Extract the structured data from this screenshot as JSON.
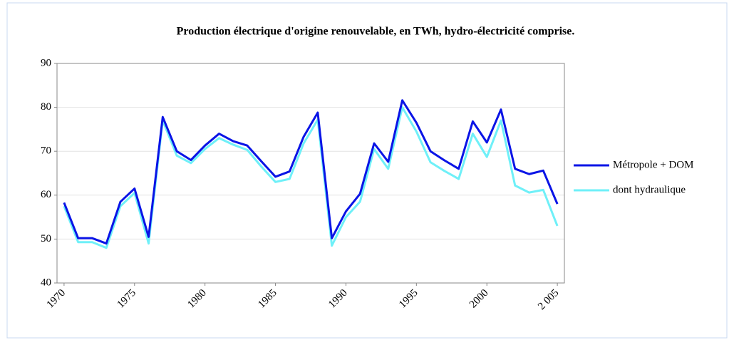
{
  "chart_data": {
    "type": "line",
    "title": "Production électrique d'origine renouvelable, en TWh, hydro-électricité comprise.",
    "x": [
      1970,
      1971,
      1972,
      1973,
      1974,
      1975,
      1976,
      1977,
      1978,
      1979,
      1980,
      1981,
      1982,
      1983,
      1984,
      1985,
      1986,
      1987,
      1988,
      1989,
      1990,
      1991,
      1992,
      1993,
      1994,
      1995,
      1996,
      1997,
      1998,
      1999,
      2000,
      2001,
      2002,
      2003,
      2004,
      2005
    ],
    "series": [
      {
        "name": "Métropole + DOM",
        "color": "#0a14e6",
        "values": [
          58.3,
          50.2,
          50.2,
          49,
          58.5,
          61.5,
          50.5,
          77.8,
          70,
          68,
          71.3,
          74,
          72.3,
          71.3,
          67.7,
          64.2,
          65.4,
          73.3,
          78.8,
          50.2,
          56.3,
          60.3,
          71.8,
          67.6,
          81.6,
          76.5,
          70,
          67.9,
          66,
          76.8,
          72,
          79.5,
          66,
          64.8,
          65.6,
          58
        ]
      },
      {
        "name": "dont hydraulique",
        "color": "#6ff0f8",
        "values": [
          57.5,
          49.3,
          49.3,
          48,
          57.5,
          60.5,
          49,
          77,
          69,
          67.3,
          70.5,
          73,
          71.5,
          70.3,
          66.5,
          63,
          63.7,
          71.8,
          77.2,
          48.5,
          55,
          58.5,
          70.5,
          66,
          80,
          74.5,
          67.5,
          65.5,
          63.7,
          74,
          68.7,
          77,
          62.2,
          60.6,
          61.2,
          53
        ]
      }
    ],
    "xlim": [
      1969.5,
      2005.5
    ],
    "xticks": [
      1970,
      1975,
      1980,
      1985,
      1990,
      1995,
      2000,
      {
        "value": 2005,
        "label": "2 005"
      }
    ],
    "ylim": [
      40,
      90
    ],
    "yticks": [
      40,
      50,
      60,
      70,
      80,
      90
    ],
    "grid": true,
    "legend": "right"
  }
}
